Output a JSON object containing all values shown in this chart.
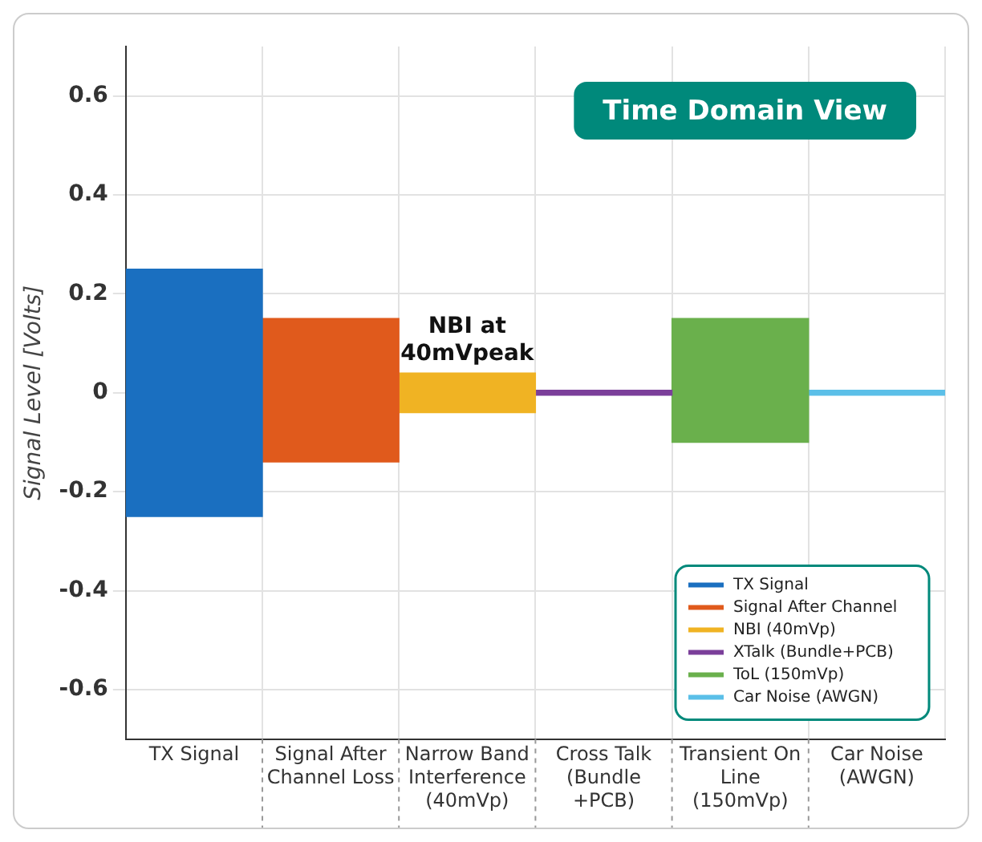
{
  "chart_data": {
    "type": "bar",
    "title": "Time Domain View",
    "ylabel": "Signal Level [Volts]",
    "categories": [
      "TX Signal",
      "Signal After Channel Loss",
      "Narrow Band Interference (40mVp)",
      "Cross Talk (Bundle +PCB)",
      "Transient On Line (150mVp)",
      "Car Noise (AWGN)"
    ],
    "series": [
      {
        "name": "TX Signal",
        "color": "#1a6fc0",
        "values": [
          0.5,
          null,
          null,
          null,
          null,
          null
        ],
        "base": [
          -0.25,
          null,
          null,
          null,
          null,
          null
        ]
      },
      {
        "name": "Signal After Channel",
        "color": "#e05a1c",
        "values": [
          null,
          0.29,
          null,
          null,
          null,
          null
        ],
        "base": [
          null,
          -0.14,
          null,
          null,
          null,
          null
        ]
      },
      {
        "name": "NBI (40mVp)",
        "color": "#f0b323",
        "values": [
          null,
          null,
          0.08,
          null,
          null,
          null
        ],
        "base": [
          null,
          null,
          -0.04,
          null,
          null,
          null
        ]
      },
      {
        "name": "XTalk (Bundle+PCB)",
        "color": "#7b3f9a",
        "values": [
          null,
          null,
          null,
          0.01,
          null,
          null
        ],
        "base": [
          null,
          null,
          null,
          -0.005,
          null,
          null
        ]
      },
      {
        "name": "ToL (150mVp)",
        "color": "#6ab04c",
        "values": [
          null,
          null,
          null,
          null,
          0.25,
          null
        ],
        "base": [
          null,
          null,
          null,
          null,
          -0.1,
          null
        ]
      },
      {
        "name": "Car Noise (AWGN)",
        "color": "#5bbfe8",
        "values": [
          null,
          null,
          null,
          null,
          null,
          0.01
        ],
        "base": [
          null,
          null,
          null,
          null,
          null,
          -0.005
        ]
      }
    ],
    "annotations": [
      {
        "text": "NBI at 40mVpeak",
        "x": "Narrow Band Interference (40mVp)",
        "y": 0.04
      }
    ],
    "ylim": [
      -0.7,
      0.7
    ],
    "yticks": [
      -0.6,
      -0.4,
      -0.2,
      0,
      0.2,
      0.4,
      0.6
    ],
    "grid": true,
    "legend": "bottom right"
  }
}
